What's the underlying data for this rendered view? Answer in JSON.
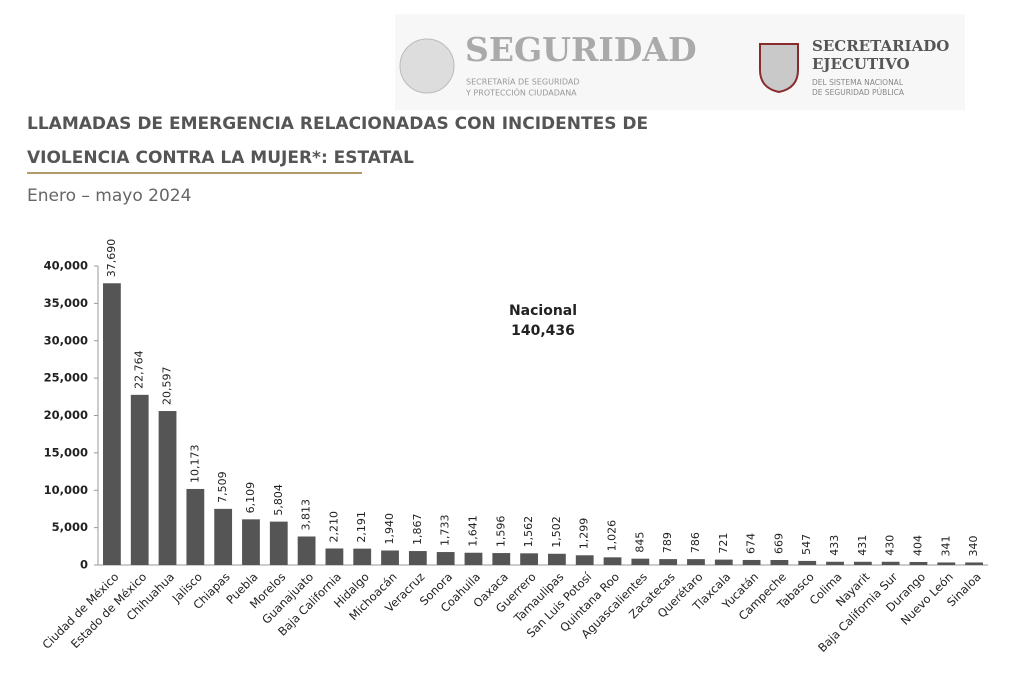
{
  "header": {
    "brand": "SEGURIDAD",
    "brand_sub_1": "SECRETARÍA DE SEGURIDAD",
    "brand_sub_2": "Y PROTECCIÓN CIUDADANA",
    "org_1": "SECRETARIADO",
    "org_2": "EJECUTIVO",
    "org_sub_1": "DEL SISTEMA NACIONAL",
    "org_sub_2": "DE SEGURIDAD PÚBLICA"
  },
  "chart_data": {
    "type": "bar",
    "title_lines": [
      "LLAMADAS DE EMERGENCIA RELACIONADAS CON INCIDENTES DE",
      "VIOLENCIA CONTRA LA MUJER*: ESTATAL"
    ],
    "subtitle": "Enero – mayo 2024",
    "total_name": "Nacional",
    "total": 140436,
    "total_label": "140,436",
    "categories": [
      "Ciudad de México",
      "Estado de México",
      "Chihuahua",
      "Jalisco",
      "Chiapas",
      "Puebla",
      "Morelos",
      "Guanajuato",
      "Baja California",
      "Hidalgo",
      "Michoacán",
      "Veracruz",
      "Sonora",
      "Coahuila",
      "Oaxaca",
      "Guerrero",
      "Tamaulipas",
      "San Luis Potosí",
      "Quintana Roo",
      "Aguascalientes",
      "Zacatecas",
      "Querétaro",
      "Tlaxcala",
      "Yucatán",
      "Campeche",
      "Tabasco",
      "Colima",
      "Nayarit",
      "Baja California Sur",
      "Durango",
      "Nuevo León",
      "Sinaloa"
    ],
    "values": [
      37690,
      22764,
      20597,
      10173,
      7509,
      6109,
      5804,
      3813,
      2210,
      2191,
      1940,
      1867,
      1733,
      1641,
      1596,
      1562,
      1502,
      1299,
      1026,
      845,
      789,
      786,
      721,
      674,
      669,
      547,
      433,
      431,
      430,
      404,
      341,
      340
    ],
    "value_labels": [
      "37,690",
      "22,764",
      "20,597",
      "10,173",
      "7,509",
      "6,109",
      "5,804",
      "3,813",
      "2,210",
      "2,191",
      "1,940",
      "1,867",
      "1,733",
      "1,641",
      "1,596",
      "1,562",
      "1,502",
      "1,299",
      "1,026",
      "845",
      "789",
      "786",
      "721",
      "674",
      "669",
      "547",
      "433",
      "431",
      "430",
      "404",
      "341",
      "340"
    ],
    "color": "#555555",
    "ylim": [
      0,
      40000
    ],
    "yticks": [
      0,
      {
        "value": 5000,
        "label": "5,000"
      },
      {
        "value": 10000,
        "label": "10,000"
      },
      {
        "value": 15000,
        "label": "15,000"
      },
      {
        "value": 20000,
        "label": "20,000"
      },
      {
        "value": 25000,
        "label": "25,000"
      },
      {
        "value": 30000,
        "label": "30,000"
      },
      {
        "value": 35000,
        "label": "35,000"
      },
      {
        "value": 40000,
        "label": "40,000"
      }
    ],
    "grid": false
  }
}
